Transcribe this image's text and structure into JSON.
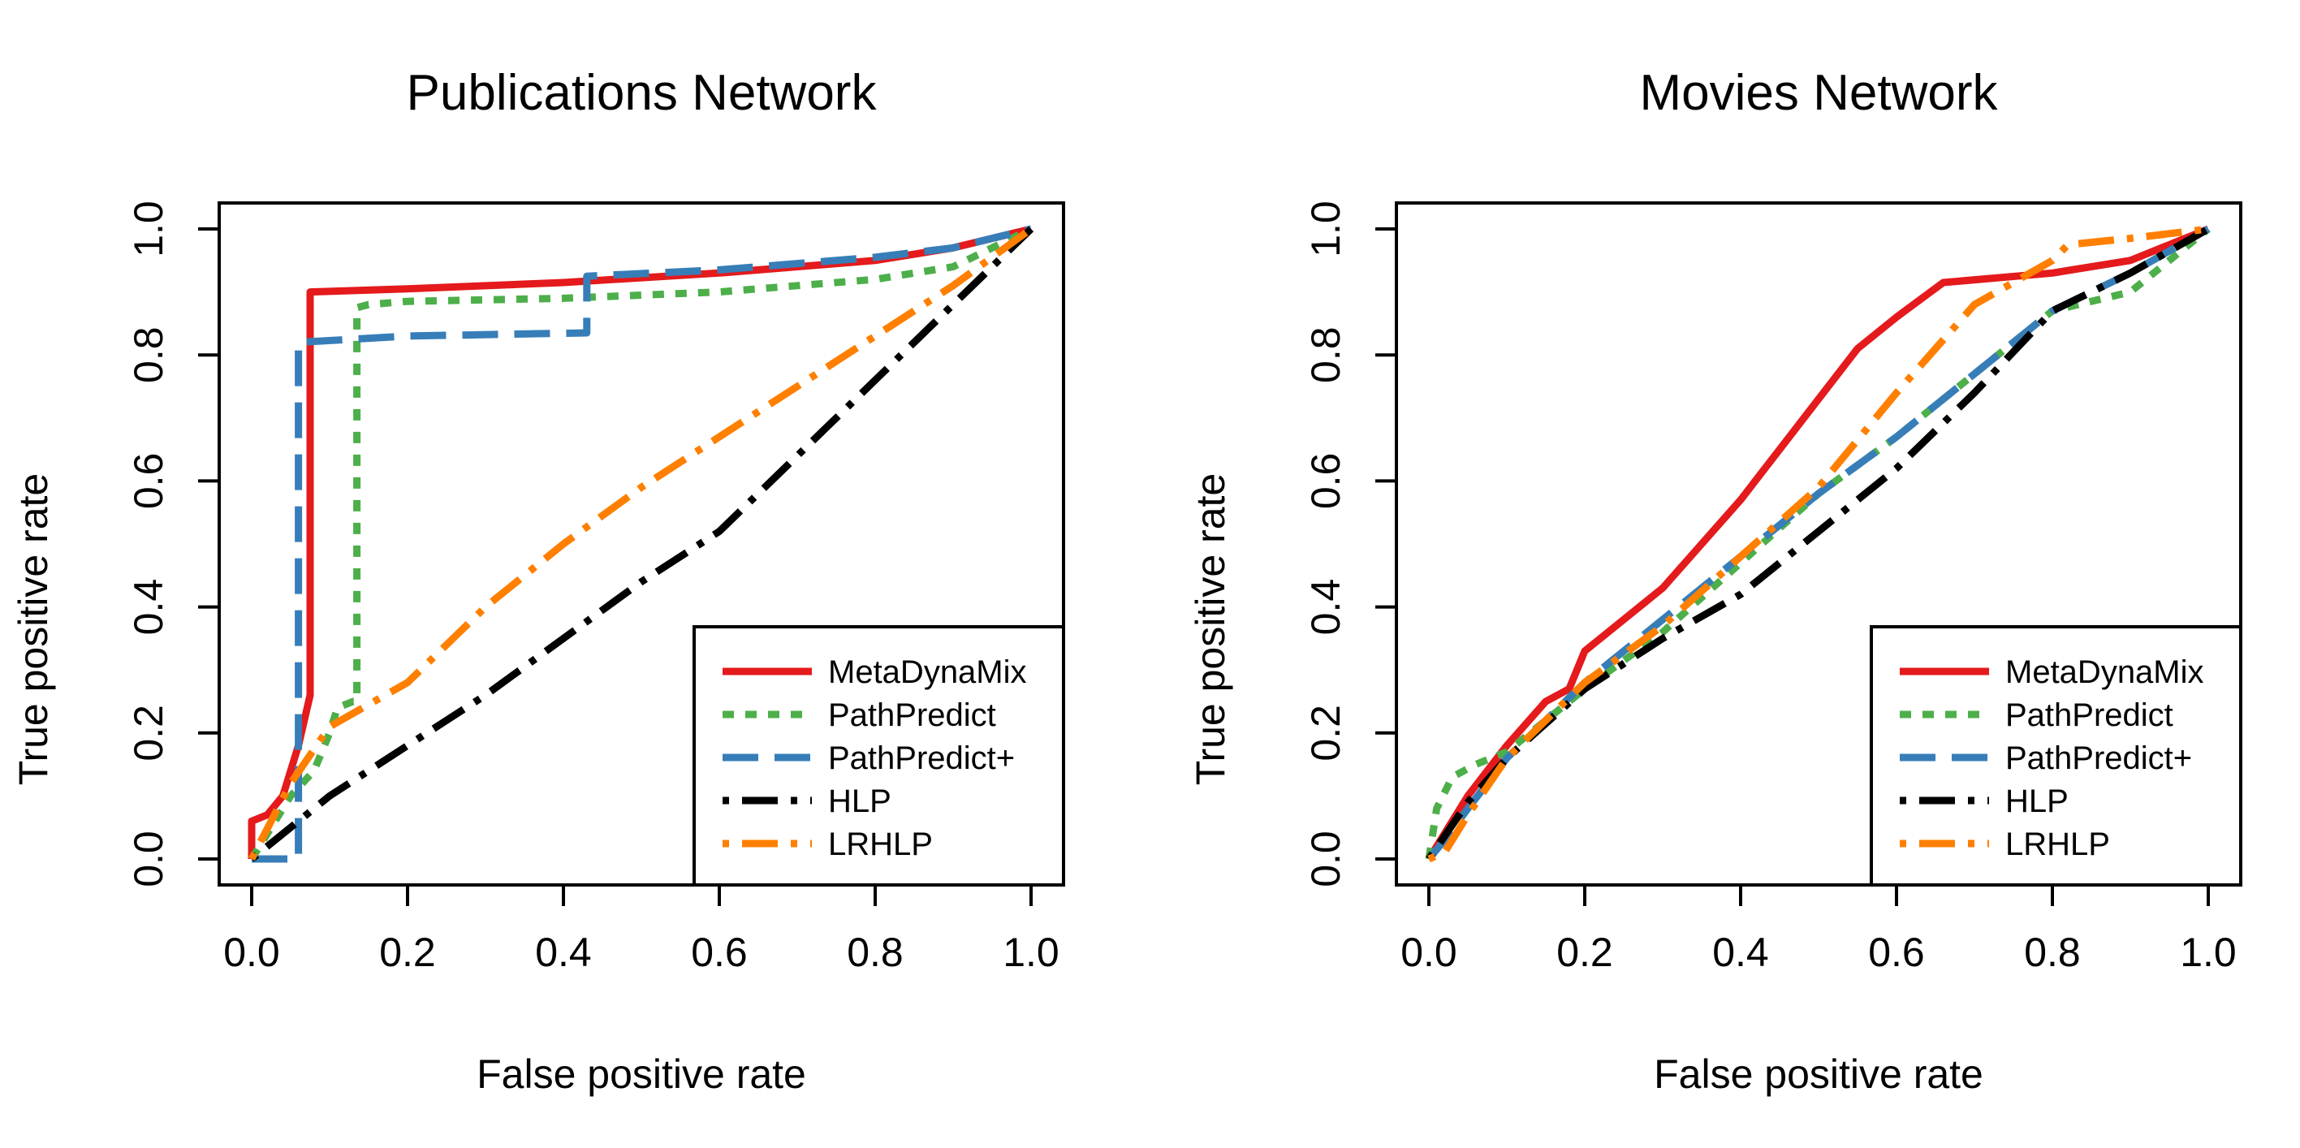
{
  "colors": {
    "MetaDynaMix": "#e41a1c",
    "PathPredict": "#4daf4a",
    "PathPredict+": "#377eb8",
    "HLP": "#000000",
    "LRHLP": "#ff7f00"
  },
  "chart_data": [
    {
      "type": "line",
      "title": "Publications Network",
      "xlabel": "False positive rate",
      "ylabel": "True positive rate",
      "xlim": [
        0,
        1
      ],
      "ylim": [
        0,
        1
      ],
      "xticks": [
        "0.0",
        "0.2",
        "0.4",
        "0.6",
        "0.8",
        "1.0"
      ],
      "yticks": [
        "0.0",
        "0.2",
        "0.4",
        "0.6",
        "0.8",
        "1.0"
      ],
      "grid": false,
      "legend_position": "bottom-right",
      "series": [
        {
          "name": "MetaDynaMix",
          "color": "#e41a1c",
          "dash": "solid",
          "x": [
            0,
            0,
            0.02,
            0.04,
            0.06,
            0.075,
            0.075,
            0.075,
            0.2,
            0.4,
            0.6,
            0.8,
            0.9,
            1.0
          ],
          "y": [
            0,
            0.06,
            0.07,
            0.1,
            0.18,
            0.26,
            0.5,
            0.9,
            0.905,
            0.915,
            0.93,
            0.95,
            0.97,
            1.0
          ]
        },
        {
          "name": "PathPredict",
          "color": "#4daf4a",
          "dash": "dot",
          "x": [
            0,
            0.02,
            0.05,
            0.08,
            0.1,
            0.11,
            0.13,
            0.135,
            0.135,
            0.135,
            0.15,
            0.2,
            0.4,
            0.6,
            0.8,
            0.9,
            1.0
          ],
          "y": [
            0,
            0.04,
            0.1,
            0.14,
            0.2,
            0.24,
            0.25,
            0.25,
            0.7,
            0.875,
            0.88,
            0.885,
            0.89,
            0.9,
            0.92,
            0.94,
            1.0
          ]
        },
        {
          "name": "PathPredict+",
          "color": "#377eb8",
          "dash": "dash",
          "x": [
            0,
            0.06,
            0.06,
            0.06,
            0.2,
            0.43,
            0.43,
            0.6,
            0.8,
            0.9,
            1.0
          ],
          "y": [
            0,
            0,
            0.3,
            0.82,
            0.83,
            0.835,
            0.925,
            0.935,
            0.955,
            0.97,
            1.0
          ]
        },
        {
          "name": "HLP",
          "color": "#000000",
          "dash": "dashdot",
          "x": [
            0,
            0.1,
            0.2,
            0.3,
            0.4,
            0.5,
            0.6,
            0.7,
            0.8,
            0.9,
            1.0
          ],
          "y": [
            0,
            0.1,
            0.18,
            0.26,
            0.35,
            0.44,
            0.52,
            0.64,
            0.76,
            0.88,
            1.0
          ]
        },
        {
          "name": "LRHLP",
          "color": "#ff7f00",
          "dash": "dashdot",
          "x": [
            0,
            0.05,
            0.1,
            0.2,
            0.3,
            0.4,
            0.5,
            0.6,
            0.7,
            0.8,
            0.9,
            1.0
          ],
          "y": [
            0,
            0.12,
            0.21,
            0.28,
            0.4,
            0.5,
            0.59,
            0.67,
            0.75,
            0.83,
            0.91,
            1.0
          ]
        }
      ]
    },
    {
      "type": "line",
      "title": "Movies Network",
      "xlabel": "False positive rate",
      "ylabel": "True positive rate",
      "xlim": [
        0,
        1
      ],
      "ylim": [
        0,
        1
      ],
      "xticks": [
        "0.0",
        "0.2",
        "0.4",
        "0.6",
        "0.8",
        "1.0"
      ],
      "yticks": [
        "0.0",
        "0.2",
        "0.4",
        "0.6",
        "0.8",
        "1.0"
      ],
      "grid": false,
      "legend_position": "bottom-right",
      "series": [
        {
          "name": "MetaDynaMix",
          "color": "#e41a1c",
          "dash": "solid",
          "x": [
            0,
            0.02,
            0.05,
            0.1,
            0.15,
            0.18,
            0.2,
            0.22,
            0.3,
            0.4,
            0.45,
            0.5,
            0.55,
            0.6,
            0.66,
            0.8,
            0.9,
            1.0
          ],
          "y": [
            0,
            0.04,
            0.1,
            0.18,
            0.25,
            0.27,
            0.33,
            0.35,
            0.43,
            0.57,
            0.65,
            0.73,
            0.81,
            0.86,
            0.915,
            0.93,
            0.95,
            1.0
          ]
        },
        {
          "name": "PathPredict",
          "color": "#4daf4a",
          "dash": "dot",
          "x": [
            0,
            0.01,
            0.03,
            0.06,
            0.1,
            0.2,
            0.3,
            0.4,
            0.5,
            0.6,
            0.7,
            0.8,
            0.9,
            1.0
          ],
          "y": [
            0,
            0.08,
            0.13,
            0.15,
            0.17,
            0.27,
            0.36,
            0.47,
            0.58,
            0.67,
            0.77,
            0.87,
            0.9,
            1.0
          ]
        },
        {
          "name": "PathPredict+",
          "color": "#377eb8",
          "dash": "dash",
          "x": [
            0,
            0.02,
            0.05,
            0.1,
            0.2,
            0.3,
            0.4,
            0.5,
            0.6,
            0.7,
            0.8,
            0.9,
            1.0
          ],
          "y": [
            0,
            0.03,
            0.08,
            0.16,
            0.28,
            0.38,
            0.48,
            0.58,
            0.67,
            0.77,
            0.87,
            0.93,
            1.0
          ]
        },
        {
          "name": "HLP",
          "color": "#000000",
          "dash": "dashdot",
          "x": [
            0,
            0.05,
            0.1,
            0.2,
            0.3,
            0.4,
            0.5,
            0.6,
            0.7,
            0.8,
            0.9,
            1.0
          ],
          "y": [
            0,
            0.09,
            0.16,
            0.27,
            0.35,
            0.42,
            0.52,
            0.62,
            0.74,
            0.87,
            0.93,
            1.0
          ]
        },
        {
          "name": "LRHLP",
          "color": "#ff7f00",
          "dash": "dashdot",
          "x": [
            0,
            0.02,
            0.05,
            0.1,
            0.2,
            0.3,
            0.4,
            0.5,
            0.6,
            0.7,
            0.8,
            0.82,
            0.9,
            1.0
          ],
          "y": [
            0,
            0.01,
            0.07,
            0.16,
            0.28,
            0.37,
            0.48,
            0.59,
            0.74,
            0.88,
            0.95,
            0.975,
            0.985,
            1.0
          ]
        }
      ]
    }
  ]
}
